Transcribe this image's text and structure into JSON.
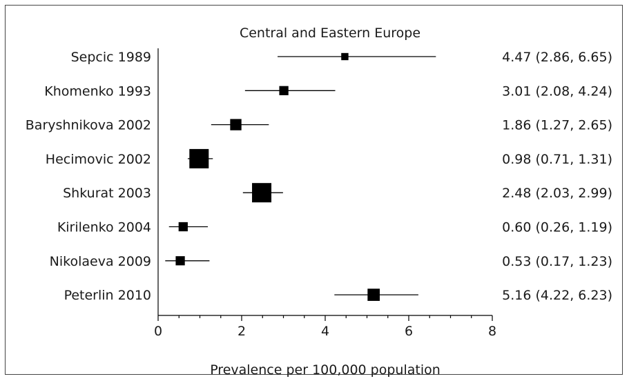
{
  "chart_data": {
    "type": "forest",
    "title": "Central and Eastern Europe",
    "xlabel": "Prevalence per 100,000 population",
    "ylabel": "",
    "xlim": [
      0,
      8
    ],
    "xticks": [
      "0",
      "2",
      "4",
      "6",
      "8"
    ],
    "grid": false,
    "colors": {
      "marker": "#000000",
      "line": "#000000",
      "text": "#1a1a1a"
    },
    "studies": [
      {
        "label": "Sepcic 1989",
        "estimate": 4.47,
        "lower": 2.86,
        "upper": 6.65,
        "weight": 0.2,
        "ci_text": "4.47 (2.86, 6.65)"
      },
      {
        "label": "Khomenko 1993",
        "estimate": 3.01,
        "lower": 2.08,
        "upper": 4.24,
        "weight": 0.33,
        "ci_text": "3.01 (2.08, 4.24)"
      },
      {
        "label": "Baryshnikova 2002",
        "estimate": 1.86,
        "lower": 1.27,
        "upper": 2.65,
        "weight": 0.47,
        "ci_text": "1.86 (1.27, 2.65)"
      },
      {
        "label": "Hecimovic 2002",
        "estimate": 0.98,
        "lower": 0.71,
        "upper": 1.31,
        "weight": 1.0,
        "ci_text": "0.98 (0.71, 1.31)"
      },
      {
        "label": "Shkurat 2003",
        "estimate": 2.48,
        "lower": 2.03,
        "upper": 2.99,
        "weight": 1.0,
        "ci_text": "2.48 (2.03, 2.99)"
      },
      {
        "label": "Kirilenko 2004",
        "estimate": 0.6,
        "lower": 0.26,
        "upper": 1.19,
        "weight": 0.33,
        "ci_text": "0.60 (0.26, 1.19)"
      },
      {
        "label": "Nikolaeva 2009",
        "estimate": 0.53,
        "lower": 0.17,
        "upper": 1.23,
        "weight": 0.33,
        "ci_text": "0.53 (0.17, 1.23)"
      },
      {
        "label": "Peterlin 2010",
        "estimate": 5.16,
        "lower": 4.22,
        "upper": 6.23,
        "weight": 0.53,
        "ci_text": "5.16 (4.22, 6.23)"
      }
    ]
  }
}
